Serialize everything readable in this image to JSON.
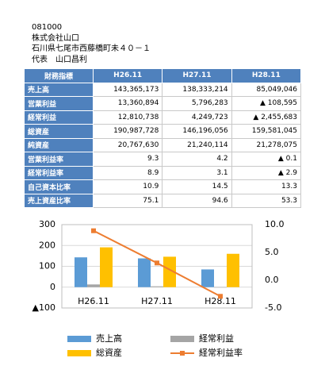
{
  "header": {
    "code": "081000",
    "company": "株式会社山口",
    "address": "石川県七尾市西藤橋町未４０－１",
    "representative": "代表　山口昌利"
  },
  "table": {
    "columns": [
      "財務指標",
      "H26.11",
      "H27.11",
      "H28.11"
    ],
    "rows": [
      [
        "売上高",
        "143,365,173",
        "138,333,214",
        "85,049,046"
      ],
      [
        "営業利益",
        "13,360,894",
        "5,796,283",
        "▲ 108,595"
      ],
      [
        "経常利益",
        "12,810,738",
        "4,249,723",
        "▲ 2,455,683"
      ],
      [
        "総資産",
        "190,987,728",
        "146,196,056",
        "159,581,045"
      ],
      [
        "純資産",
        "20,767,630",
        "21,240,114",
        "21,278,075"
      ],
      [
        "営業利益率",
        "9.3",
        "4.2",
        "▲ 0.1"
      ],
      [
        "経常利益率",
        "8.9",
        "3.1",
        "▲ 2.9"
      ],
      [
        "自己資本比率",
        "10.9",
        "14.5",
        "13.3"
      ],
      [
        "売上資産比率",
        "75.1",
        "94.6",
        "53.3"
      ]
    ]
  },
  "chart_data": {
    "type": "bar",
    "categories": [
      "H26.11",
      "H27.11",
      "H28.11"
    ],
    "series": [
      {
        "name": "売上高",
        "color": "#5b9bd5",
        "values": [
          143,
          138,
          85
        ]
      },
      {
        "name": "経常利益",
        "color": "#a5a5a5",
        "values": [
          13,
          4,
          -2
        ]
      },
      {
        "name": "総資産",
        "color": "#ffc000",
        "values": [
          191,
          146,
          160
        ]
      },
      {
        "name": "経常利益率",
        "color": "#ed7d31",
        "type": "line",
        "axis": "y2",
        "values": [
          8.9,
          3.1,
          -2.9
        ]
      }
    ],
    "ylim": [
      -100,
      300
    ],
    "yticks": [
      {
        "value": -100,
        "label": "▲100"
      },
      0,
      100,
      200,
      300
    ],
    "y2lim": [
      -5,
      10
    ],
    "y2ticks": [
      {
        "value": -5,
        "label": "-5.0"
      },
      {
        "value": 0,
        "label": "0.0"
      },
      {
        "value": 5,
        "label": "5.0"
      },
      {
        "value": 10,
        "label": "10.0"
      }
    ],
    "grid": true
  }
}
